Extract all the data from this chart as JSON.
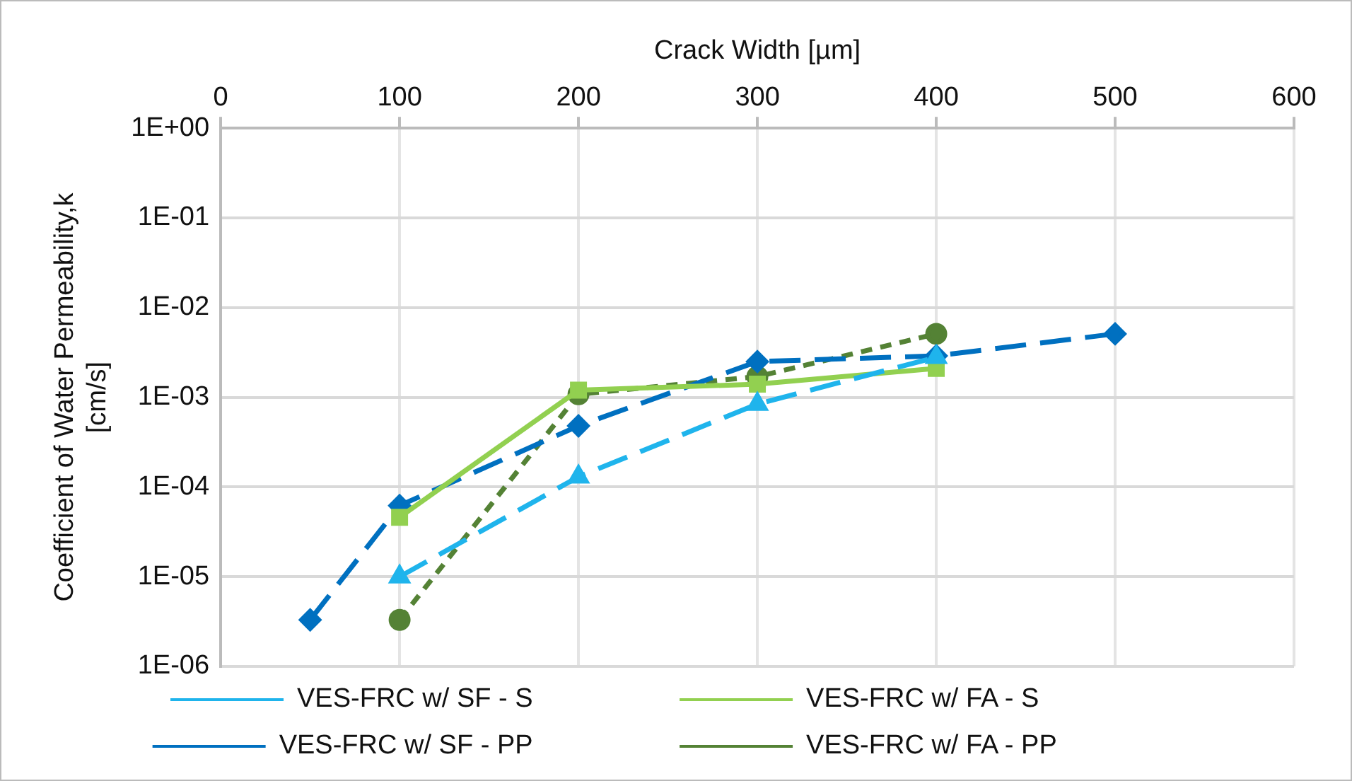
{
  "chart_data": {
    "type": "line",
    "xlabel": "Crack Width [µm]",
    "ylabel": "Coefficient of Water Permeability,k [cm/s]",
    "log": "y",
    "grid": true,
    "legend": "bottom",
    "xlim": [
      0,
      600
    ],
    "xticks": [
      0,
      100,
      200,
      300,
      400,
      500,
      600
    ],
    "ylim": [
      1e-06,
      1
    ],
    "yticks": [
      {
        "value": 1e-06,
        "label": "1E-06"
      },
      {
        "value": 1e-05,
        "label": "1E-05"
      },
      {
        "value": 0.0001,
        "label": "1E-04"
      },
      {
        "value": 0.001,
        "label": "1E-03"
      },
      {
        "value": 0.01,
        "label": "1E-02"
      },
      {
        "value": 0.1,
        "label": "1E-01"
      },
      {
        "value": 1,
        "label": "1E+00"
      }
    ],
    "series": [
      {
        "name": "VES-FRC w/ SF - S",
        "color": "#1fb4ec",
        "marker": "triangle",
        "line_style": "dashed",
        "x": [
          100,
          200,
          300,
          400
        ],
        "values": [
          1e-05,
          0.00013,
          0.00084,
          0.0028
        ]
      },
      {
        "name": "VES-FRC w/ FA - S",
        "color": "#92d050",
        "marker": "square",
        "line_style": "solid",
        "x": [
          100,
          200,
          300,
          400
        ],
        "values": [
          4.6e-05,
          0.0012,
          0.0014,
          0.0021
        ]
      },
      {
        "name": "VES-FRC w/ SF - PP",
        "color": "#0070c0",
        "marker": "diamond",
        "line_style": "dashed",
        "x": [
          50,
          100,
          200,
          300,
          400,
          500
        ],
        "values": [
          3.3e-06,
          6.2e-05,
          0.00048,
          0.0025,
          0.0029,
          0.0051
        ]
      },
      {
        "name": "VES-FRC w/ FA - PP",
        "color": "#548235",
        "marker": "circle",
        "line_style": "dotted",
        "x": [
          100,
          200,
          300,
          400
        ],
        "values": [
          3.3e-06,
          0.00108,
          0.0017,
          0.0051
        ]
      }
    ]
  }
}
